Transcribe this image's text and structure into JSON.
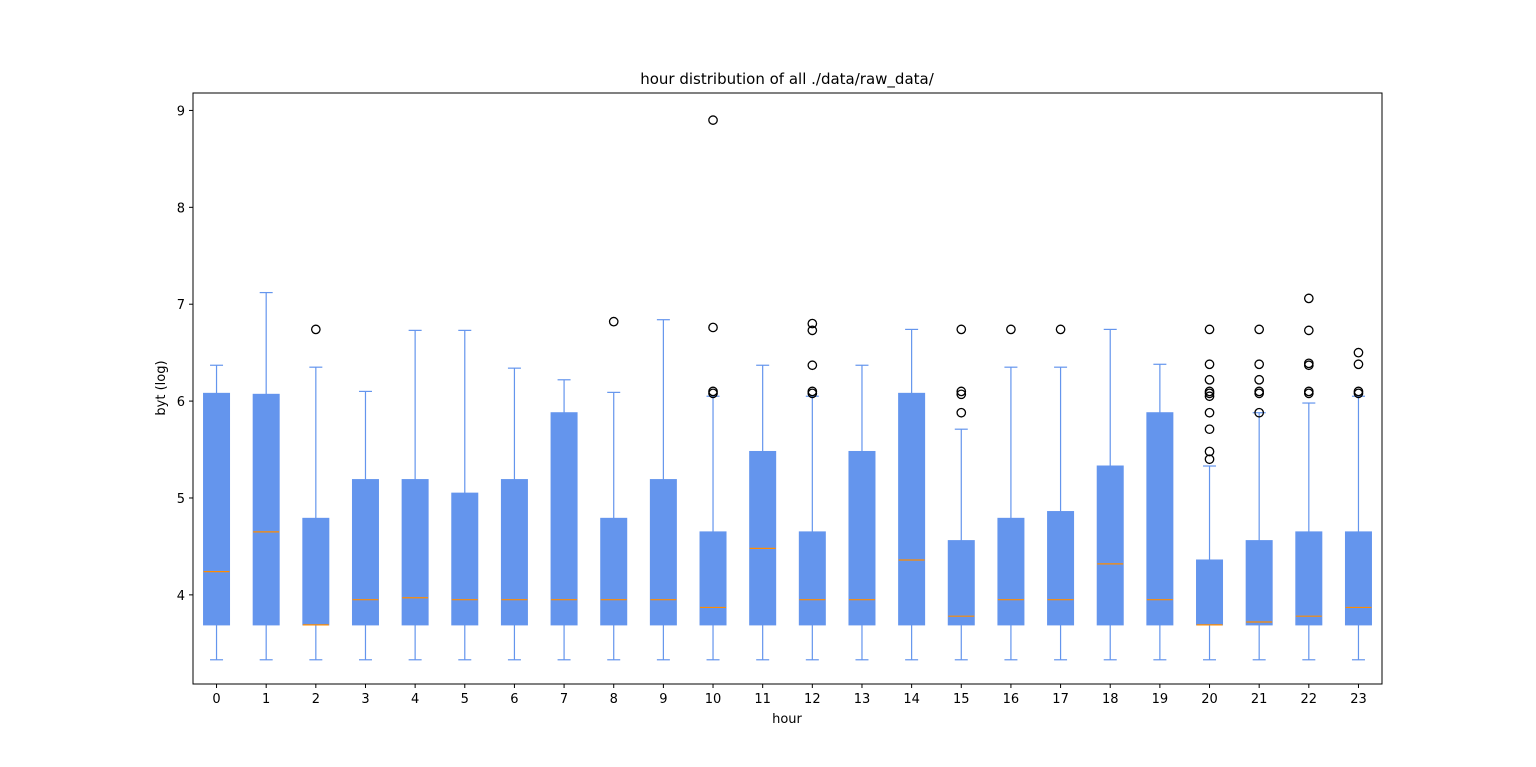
{
  "chart_data": {
    "type": "boxplot",
    "title": "hour distribution of all ./data/raw_data/",
    "xlabel": "hour",
    "ylabel": "byt (log)",
    "ylim": [
      3.08,
      9.18
    ],
    "yticks": [
      4,
      5,
      6,
      7,
      8,
      9
    ],
    "grid": false,
    "box_color": "#6495ED",
    "median_color": "#FF8C00",
    "flier_color": "#000000",
    "categories": [
      "0",
      "1",
      "2",
      "3",
      "4",
      "5",
      "6",
      "7",
      "8",
      "9",
      "10",
      "11",
      "12",
      "13",
      "14",
      "15",
      "16",
      "17",
      "18",
      "19",
      "20",
      "21",
      "22",
      "23"
    ],
    "boxes": [
      {
        "whislo": 3.33,
        "q1": 3.69,
        "med": 4.24,
        "q3": 6.08,
        "whishi": 6.37,
        "fliers": []
      },
      {
        "whislo": 3.33,
        "q1": 3.69,
        "med": 4.65,
        "q3": 6.07,
        "whishi": 7.12,
        "fliers": []
      },
      {
        "whislo": 3.33,
        "q1": 3.69,
        "med": 3.69,
        "q3": 4.79,
        "whishi": 6.35,
        "fliers": [
          6.74
        ]
      },
      {
        "whislo": 3.33,
        "q1": 3.69,
        "med": 3.95,
        "q3": 5.19,
        "whishi": 6.1,
        "fliers": []
      },
      {
        "whislo": 3.33,
        "q1": 3.69,
        "med": 3.97,
        "q3": 5.19,
        "whishi": 6.73,
        "fliers": []
      },
      {
        "whislo": 3.33,
        "q1": 3.69,
        "med": 3.95,
        "q3": 5.05,
        "whishi": 6.73,
        "fliers": []
      },
      {
        "whislo": 3.33,
        "q1": 3.69,
        "med": 3.95,
        "q3": 5.19,
        "whishi": 6.34,
        "fliers": []
      },
      {
        "whislo": 3.33,
        "q1": 3.69,
        "med": 3.95,
        "q3": 5.88,
        "whishi": 6.22,
        "fliers": []
      },
      {
        "whislo": 3.33,
        "q1": 3.69,
        "med": 3.95,
        "q3": 4.79,
        "whishi": 6.09,
        "fliers": [
          6.82
        ]
      },
      {
        "whislo": 3.33,
        "q1": 3.69,
        "med": 3.95,
        "q3": 5.19,
        "whishi": 6.84,
        "fliers": []
      },
      {
        "whislo": 3.33,
        "q1": 3.69,
        "med": 3.87,
        "q3": 4.65,
        "whishi": 6.05,
        "fliers": [
          6.08,
          6.1,
          6.76,
          8.9
        ]
      },
      {
        "whislo": 3.33,
        "q1": 3.69,
        "med": 4.48,
        "q3": 5.48,
        "whishi": 6.37,
        "fliers": []
      },
      {
        "whislo": 3.33,
        "q1": 3.69,
        "med": 3.95,
        "q3": 4.65,
        "whishi": 6.05,
        "fliers": [
          6.08,
          6.1,
          6.37,
          6.73,
          6.8
        ]
      },
      {
        "whislo": 3.33,
        "q1": 3.69,
        "med": 3.95,
        "q3": 5.48,
        "whishi": 6.37,
        "fliers": []
      },
      {
        "whislo": 3.33,
        "q1": 3.69,
        "med": 4.36,
        "q3": 6.08,
        "whishi": 6.74,
        "fliers": []
      },
      {
        "whislo": 3.33,
        "q1": 3.69,
        "med": 3.78,
        "q3": 4.56,
        "whishi": 5.71,
        "fliers": [
          5.88,
          6.07,
          6.1,
          6.74
        ]
      },
      {
        "whislo": 3.33,
        "q1": 3.69,
        "med": 3.95,
        "q3": 4.79,
        "whishi": 6.35,
        "fliers": [
          6.74
        ]
      },
      {
        "whislo": 3.33,
        "q1": 3.69,
        "med": 3.95,
        "q3": 4.86,
        "whishi": 6.35,
        "fliers": [
          6.74
        ]
      },
      {
        "whislo": 3.33,
        "q1": 3.69,
        "med": 4.32,
        "q3": 5.33,
        "whishi": 6.74,
        "fliers": []
      },
      {
        "whislo": 3.33,
        "q1": 3.69,
        "med": 3.95,
        "q3": 5.88,
        "whishi": 6.38,
        "fliers": []
      },
      {
        "whislo": 3.33,
        "q1": 3.69,
        "med": 3.69,
        "q3": 4.36,
        "whishi": 5.33,
        "fliers": [
          5.4,
          5.48,
          5.71,
          5.88,
          6.05,
          6.08,
          6.1,
          6.22,
          6.38,
          6.74
        ]
      },
      {
        "whislo": 3.33,
        "q1": 3.69,
        "med": 3.72,
        "q3": 4.56,
        "whishi": 5.88,
        "fliers": [
          5.88,
          6.08,
          6.1,
          6.22,
          6.38,
          6.74
        ]
      },
      {
        "whislo": 3.33,
        "q1": 3.69,
        "med": 3.78,
        "q3": 4.65,
        "whishi": 5.98,
        "fliers": [
          6.08,
          6.1,
          6.37,
          6.39,
          6.73,
          7.06
        ]
      },
      {
        "whislo": 3.33,
        "q1": 3.69,
        "med": 3.87,
        "q3": 4.65,
        "whishi": 6.05,
        "fliers": [
          6.08,
          6.1,
          6.38,
          6.5
        ]
      }
    ]
  }
}
